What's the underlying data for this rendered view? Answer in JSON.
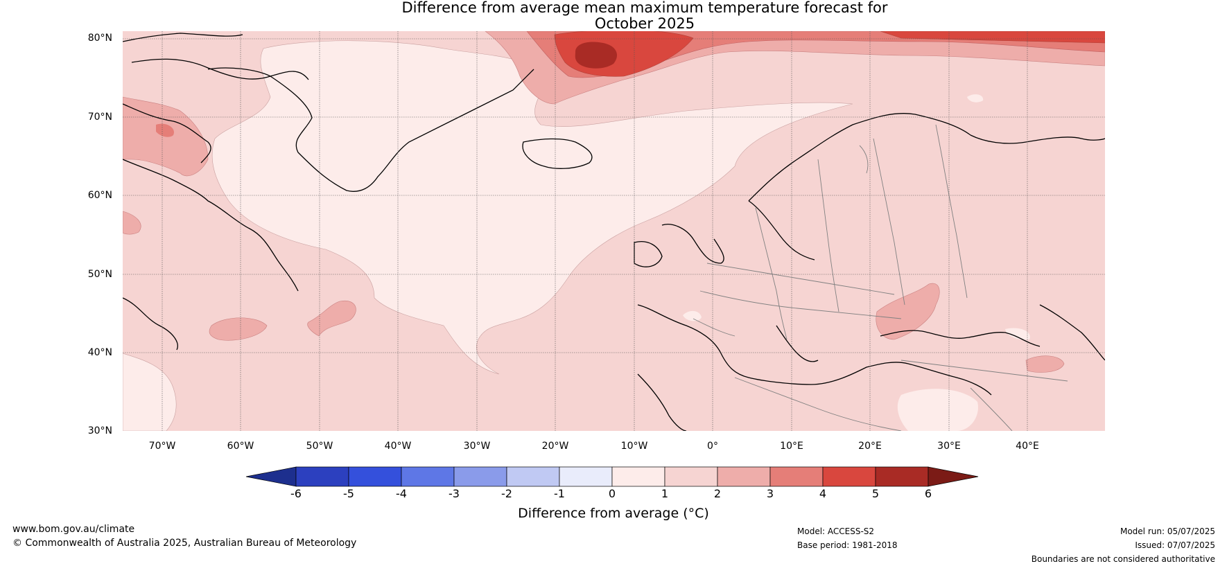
{
  "title": {
    "line1": "Difference from average mean maximum temperature forecast for",
    "line2": "October 2025"
  },
  "map": {
    "lat_labels": [
      "80°N",
      "70°N",
      "60°N",
      "50°N",
      "40°N",
      "30°N"
    ],
    "lon_labels": [
      "70°W",
      "60°W",
      "50°W",
      "40°W",
      "30°W",
      "20°W",
      "10°W",
      "0°",
      "10°E",
      "20°E",
      "30°E",
      "40°E"
    ],
    "extent": {
      "lon": [
        -75,
        50
      ],
      "lat": [
        30,
        81
      ]
    }
  },
  "colorbar": {
    "ticks": [
      "-6",
      "-5",
      "-4",
      "-3",
      "-2",
      "-1",
      "0",
      "1",
      "2",
      "3",
      "4",
      "5",
      "6"
    ],
    "colors": [
      "#1d2f8e",
      "#2c40bf",
      "#3450dc",
      "#5e77e6",
      "#8a9bea",
      "#c0c9f3",
      "#e9ecfb",
      "#fdecea",
      "#f6d4d2",
      "#eeadaa",
      "#e57e78",
      "#d9473e",
      "#a92b25",
      "#7b1b16"
    ],
    "label": "Difference from average (°C)"
  },
  "footer": {
    "url": "www.bom.gov.au/climate",
    "copyright": "© Commonwealth of Australia 2025, Australian Bureau of Meteorology",
    "model": "Model: ACCESS-S2",
    "base_period": "Base period: 1981-2018",
    "model_run": "Model run: 05/07/2025",
    "issued": "Issued: 07/07/2025",
    "disclaimer": "Boundaries are not considered authoritative"
  }
}
